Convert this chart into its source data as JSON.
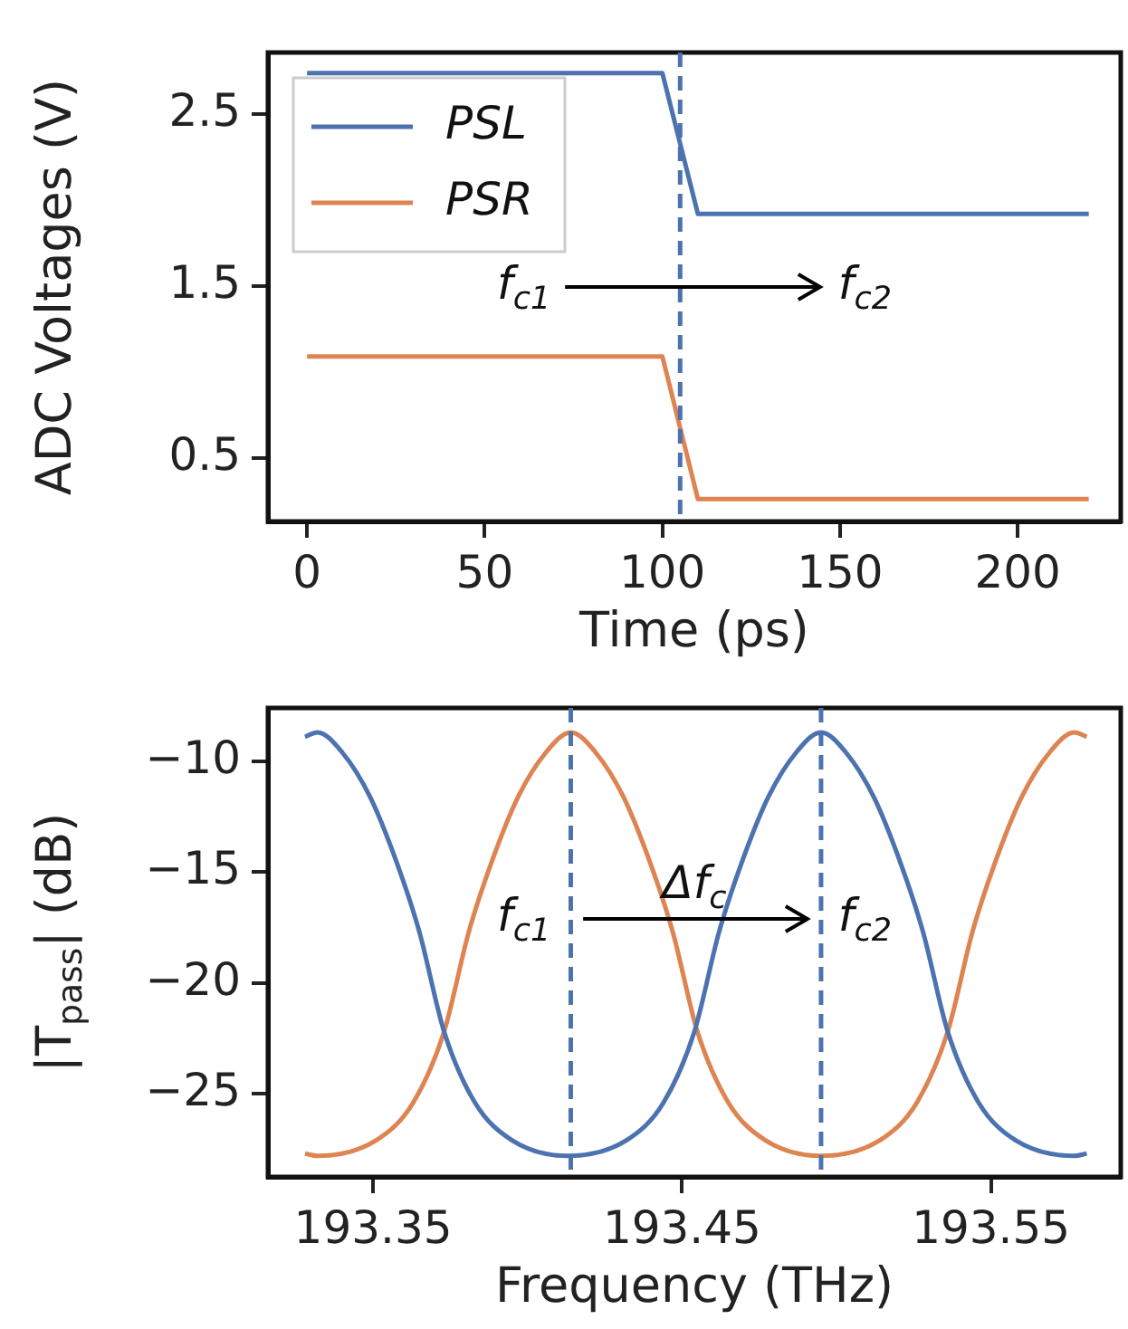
{
  "chart_data": [
    {
      "type": "line",
      "xlabel": "Time (ps)",
      "ylabel": "ADC Voltages (V)",
      "x": [
        0,
        100,
        110,
        220
      ],
      "series": [
        {
          "name": "PSL",
          "color": "#4c72b0",
          "values": [
            2.74,
            2.74,
            1.92,
            1.92
          ]
        },
        {
          "name": "PSR",
          "color": "#dd8452",
          "values": [
            1.09,
            1.09,
            0.26,
            0.26
          ]
        }
      ],
      "xlim": [
        -11,
        229
      ],
      "xticks": [
        0,
        50,
        100,
        150,
        200
      ],
      "ylim": [
        0.13,
        2.86
      ],
      "yticks": [
        0.5,
        1.5,
        2.5
      ],
      "ref_lines": [
        {
          "axis": "x",
          "value": 105,
          "color": "#4c72b0",
          "line_style": "dashed"
        }
      ],
      "annotations": [
        "f$_{c1}$",
        "f$_{c2}$"
      ],
      "legend": "top left",
      "grid": false,
      "marker": "none"
    },
    {
      "type": "line",
      "xlabel": "Frequency (THz)",
      "ylabel": "|T$_{pass}$| (dB)",
      "series": [
        {
          "color": "#4c72b0",
          "x": [
            193.328,
            193.332,
            193.34,
            193.349,
            193.358,
            193.365,
            193.373,
            193.383,
            193.395,
            193.413,
            193.432,
            193.444,
            193.454,
            193.462,
            193.469,
            193.478,
            193.487,
            193.495,
            193.503,
            193.512,
            193.521,
            193.528,
            193.536,
            193.546,
            193.558,
            193.577,
            193.581
          ],
          "values": [
            -8.9,
            -8.7,
            -9.6,
            -11.6,
            -14.7,
            -17.7,
            -22.2,
            -25.4,
            -27.1,
            -27.8,
            -27.1,
            -25.4,
            -22.2,
            -17.7,
            -14.7,
            -11.6,
            -9.6,
            -8.7,
            -9.6,
            -11.6,
            -14.7,
            -17.7,
            -22.2,
            -25.4,
            -27.1,
            -27.8,
            -27.7
          ]
        },
        {
          "color": "#dd8452",
          "x": [
            193.328,
            193.332,
            193.351,
            193.363,
            193.373,
            193.381,
            193.388,
            193.397,
            193.406,
            193.414,
            193.422,
            193.431,
            193.44,
            193.447,
            193.455,
            193.465,
            193.477,
            193.495,
            193.514,
            193.526,
            193.536,
            193.544,
            193.551,
            193.56,
            193.569,
            193.577,
            193.581
          ],
          "values": [
            -27.7,
            -27.8,
            -27.1,
            -25.4,
            -22.2,
            -17.7,
            -14.7,
            -11.6,
            -9.6,
            -8.7,
            -9.6,
            -11.6,
            -14.7,
            -17.7,
            -22.2,
            -25.4,
            -27.1,
            -27.8,
            -27.1,
            -25.4,
            -22.2,
            -17.7,
            -14.7,
            -11.6,
            -9.6,
            -8.7,
            -8.9
          ]
        }
      ],
      "xlim": [
        193.316,
        193.592
      ],
      "xticks": [
        193.35,
        193.45,
        193.55
      ],
      "ylim": [
        -28.75,
        -7.6
      ],
      "yticks": [
        {
          "value": -10,
          "label": "−10"
        },
        {
          "value": -15,
          "label": "−15"
        },
        {
          "value": -20,
          "label": "−20"
        },
        {
          "value": -25,
          "label": "−25"
        }
      ],
      "ref_lines": [
        {
          "axis": "x",
          "value": 193.414,
          "color": "#4c72b0",
          "line_style": "dashed"
        },
        {
          "axis": "x",
          "value": 193.495,
          "color": "#4c72b0",
          "line_style": "dashed"
        }
      ],
      "annotations": [
        "f$_{c1}$",
        "Δf$_{c}$",
        "f$_{c2}$"
      ],
      "grid": false,
      "marker": "none"
    }
  ]
}
